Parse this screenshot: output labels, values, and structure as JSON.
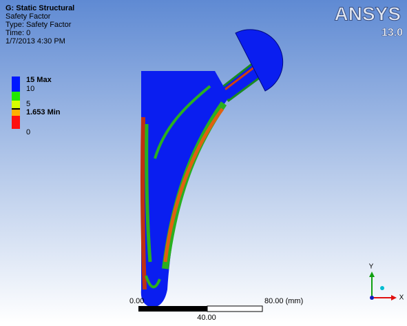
{
  "header": {
    "title": "G: Static Structural",
    "lines": [
      "Safety Factor",
      "Type: Safety Factor",
      "Time: 0",
      "1/7/2013 4:30 PM"
    ]
  },
  "legend": {
    "labels": [
      "15 Max",
      "10",
      "5",
      "1.653 Min",
      "0"
    ]
  },
  "logo": {
    "name": "ANSYS",
    "version": "13.0"
  },
  "scale_bar": {
    "start": "0.00",
    "middle": "40.00",
    "end": "80.00 (mm)"
  },
  "triad": {
    "y": "Y",
    "x": "X"
  }
}
